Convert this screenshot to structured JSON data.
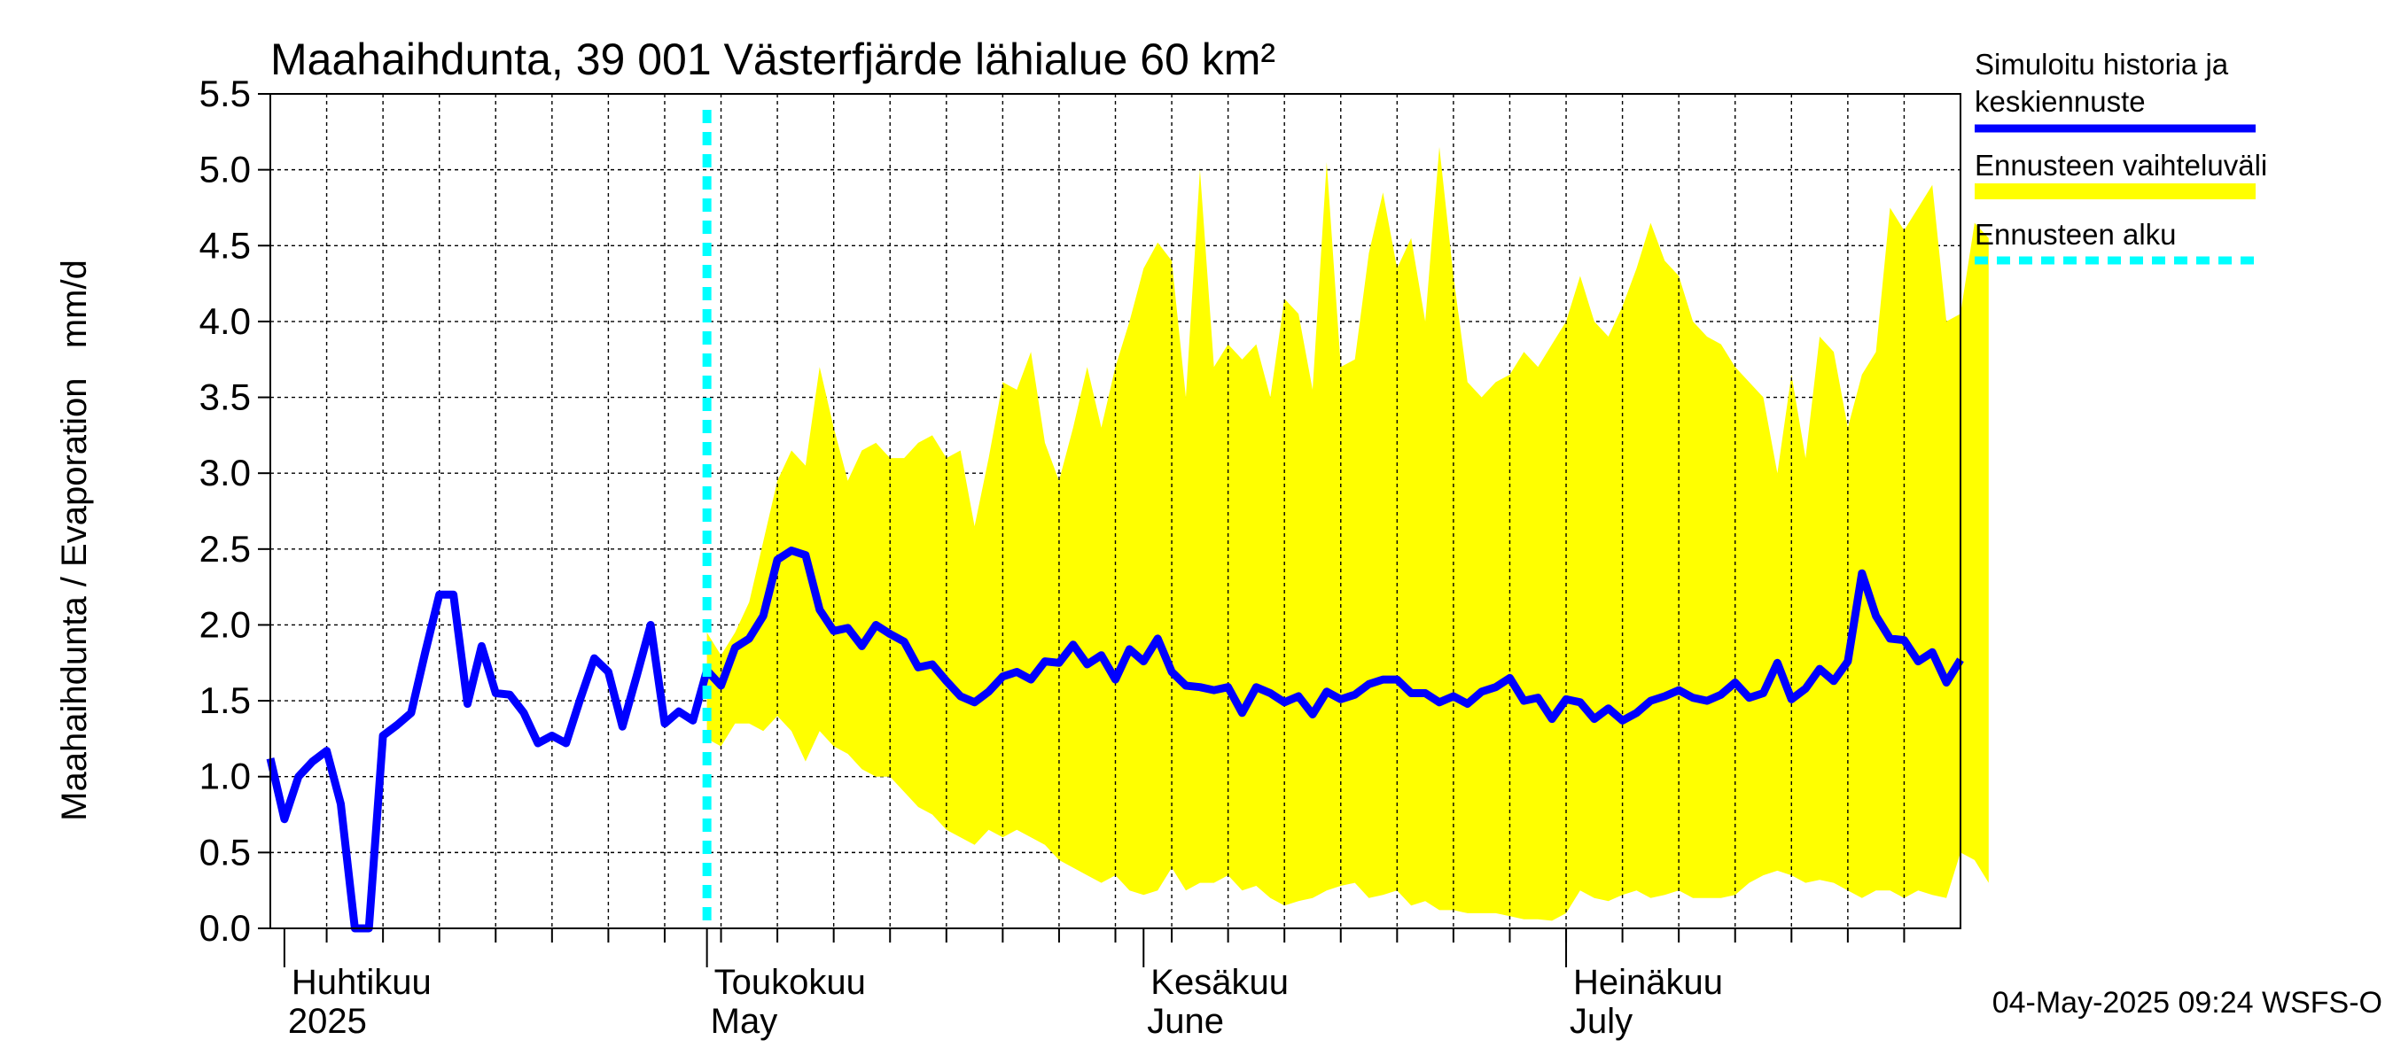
{
  "chart_data": {
    "type": "line",
    "title": "Maahaihdunta, 39 001 Västerfjärde lähialue 60 km²",
    "ylabel": "Maahaihdunta / Evaporation   mm/d",
    "ylim": [
      0,
      5.5
    ],
    "yticks": [
      "0.0",
      "0.5",
      "1.0",
      "1.5",
      "2.0",
      "2.5",
      "3.0",
      "3.5",
      "4.0",
      "4.5",
      "5.0",
      "5.5"
    ],
    "xlim": [
      "2025-03-31",
      "2025-07-29"
    ],
    "month_labels": [
      {
        "fi": "Huhtikuu",
        "en": "2025",
        "date": "2025-04-01"
      },
      {
        "fi": "Toukokuu",
        "en": "May",
        "date": "2025-05-01"
      },
      {
        "fi": "Kesäkuu",
        "en": "June",
        "date": "2025-06-01"
      },
      {
        "fi": "Heinäkuu",
        "en": "July",
        "date": "2025-07-01"
      }
    ],
    "forecast_start": "2025-05-01",
    "footer": "04-May-2025 09:24 WSFS-O",
    "colors": {
      "series": "#0000ff",
      "band": "#ffff00",
      "forecast_line": "#00ffff",
      "grid": "#000000"
    },
    "legend": {
      "position": "right",
      "entries": [
        {
          "label_lines": [
            "Simuloitu historia ja",
            "keskiennuste"
          ],
          "style": "line",
          "color": "#0000ff"
        },
        {
          "label_lines": [
            "Ennusteen vaihteluväli"
          ],
          "style": "band",
          "color": "#ffff00"
        },
        {
          "label_lines": [
            "Ennusteen alku"
          ],
          "style": "dashed",
          "color": "#00ffff"
        }
      ]
    },
    "series": [
      {
        "name": "Simuloitu historia ja keskiennuste",
        "x_start": "2025-03-31",
        "step_days": 1,
        "values": [
          1.12,
          0.72,
          1.0,
          1.1,
          1.17,
          0.82,
          0.0,
          0.0,
          1.27,
          1.34,
          1.42,
          1.82,
          2.2,
          2.2,
          1.48,
          1.86,
          1.55,
          1.54,
          1.42,
          1.22,
          1.27,
          1.22,
          1.51,
          1.78,
          1.69,
          1.33,
          1.66,
          2.0,
          1.35,
          1.43,
          1.37,
          1.7,
          1.6,
          1.85,
          1.91,
          2.06,
          2.43,
          2.49,
          2.46,
          2.1,
          1.96,
          1.98,
          1.86,
          2.0,
          1.94,
          1.89,
          1.72,
          1.74,
          1.63,
          1.53,
          1.49,
          1.56,
          1.66,
          1.69,
          1.64,
          1.76,
          1.75,
          1.87,
          1.74,
          1.8,
          1.64,
          1.84,
          1.76,
          1.91,
          1.69,
          1.6,
          1.59,
          1.57,
          1.59,
          1.42,
          1.59,
          1.55,
          1.49,
          1.53,
          1.41,
          1.56,
          1.51,
          1.54,
          1.61,
          1.64,
          1.64,
          1.55,
          1.55,
          1.49,
          1.53,
          1.48,
          1.56,
          1.59,
          1.65,
          1.5,
          1.52,
          1.38,
          1.51,
          1.49,
          1.38,
          1.45,
          1.37,
          1.42,
          1.5,
          1.53,
          1.57,
          1.52,
          1.5,
          1.54,
          1.62,
          1.52,
          1.55,
          1.75,
          1.51,
          1.58,
          1.71,
          1.63,
          1.76,
          2.34,
          2.06,
          1.91,
          1.9,
          1.76,
          1.82,
          1.62,
          1.77
        ]
      }
    ],
    "band": {
      "name": "Ennusteen vaihteluväli",
      "x_start": "2025-05-01",
      "step_days": 1,
      "upper": [
        1.95,
        1.8,
        1.95,
        2.15,
        2.55,
        2.95,
        3.15,
        3.05,
        3.7,
        3.3,
        2.95,
        3.15,
        3.2,
        3.1,
        3.1,
        3.2,
        3.25,
        3.1,
        3.15,
        2.65,
        3.1,
        3.6,
        3.55,
        3.8,
        3.2,
        2.95,
        3.3,
        3.7,
        3.3,
        3.7,
        4.0,
        4.35,
        4.52,
        4.4,
        3.5,
        5.0,
        3.7,
        3.85,
        3.75,
        3.85,
        3.5,
        4.15,
        4.05,
        3.55,
        5.05,
        3.7,
        3.75,
        4.45,
        4.85,
        4.35,
        4.55,
        4.0,
        5.15,
        4.3,
        3.6,
        3.5,
        3.6,
        3.65,
        3.8,
        3.7,
        3.85,
        4.0,
        4.3,
        4.0,
        3.9,
        4.1,
        4.35,
        4.65,
        4.4,
        4.3,
        4.0,
        3.9,
        3.85,
        3.7,
        3.6,
        3.5,
        3.0,
        3.65,
        3.1,
        3.9,
        3.8,
        3.3,
        3.65,
        3.8,
        4.75,
        4.6,
        4.75,
        4.9,
        4.0,
        4.05,
        4.65,
        4.55
      ],
      "lower": [
        1.25,
        1.2,
        1.35,
        1.35,
        1.3,
        1.4,
        1.3,
        1.1,
        1.3,
        1.2,
        1.15,
        1.05,
        1.0,
        1.0,
        0.9,
        0.8,
        0.75,
        0.65,
        0.6,
        0.55,
        0.65,
        0.6,
        0.65,
        0.6,
        0.55,
        0.45,
        0.4,
        0.35,
        0.3,
        0.35,
        0.25,
        0.22,
        0.25,
        0.4,
        0.25,
        0.3,
        0.3,
        0.35,
        0.25,
        0.28,
        0.2,
        0.15,
        0.18,
        0.2,
        0.25,
        0.28,
        0.3,
        0.2,
        0.22,
        0.25,
        0.15,
        0.18,
        0.12,
        0.12,
        0.1,
        0.1,
        0.1,
        0.08,
        0.06,
        0.06,
        0.05,
        0.1,
        0.25,
        0.2,
        0.18,
        0.22,
        0.25,
        0.2,
        0.22,
        0.25,
        0.2,
        0.2,
        0.2,
        0.22,
        0.3,
        0.35,
        0.38,
        0.35,
        0.3,
        0.32,
        0.3,
        0.25,
        0.2,
        0.25,
        0.25,
        0.2,
        0.25,
        0.22,
        0.2,
        0.5,
        0.45,
        0.3
      ]
    }
  }
}
